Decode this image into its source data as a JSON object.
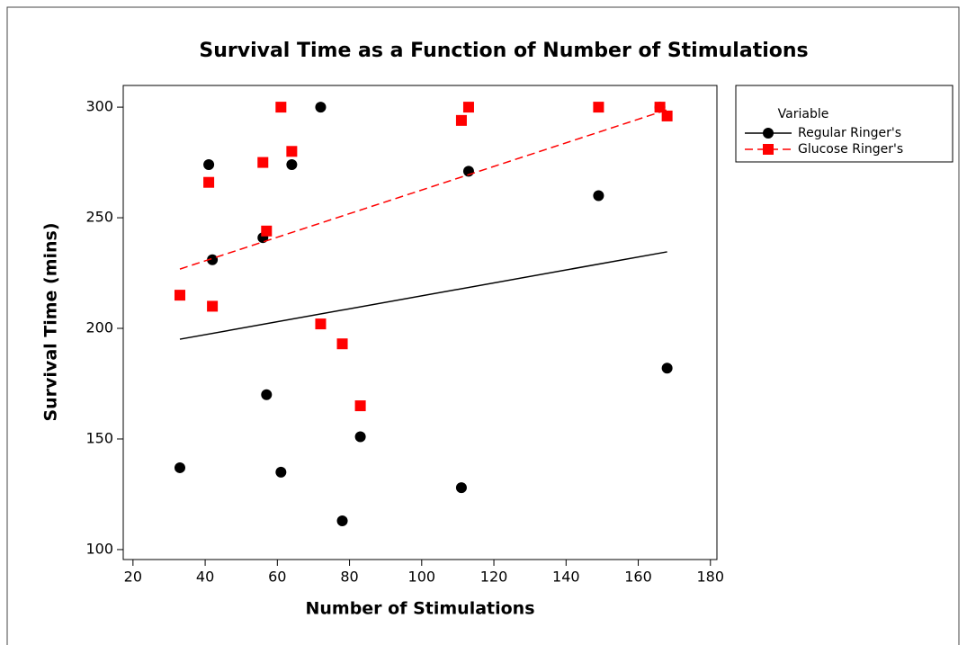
{
  "chart_data": {
    "type": "scatter",
    "title": "Survival Time as a Function of Number of Stimulations",
    "x_label": "Number of Stimulations",
    "y_label": "Survival Time (mins)",
    "legend_title": "Variable",
    "legend": "outside-right",
    "xlim": [
      17.3,
      181.8
    ],
    "ylim": [
      95.5,
      309.8
    ],
    "xticks": [
      20,
      40,
      60,
      80,
      100,
      120,
      140,
      160,
      180
    ],
    "yticks": [
      100,
      150,
      200,
      250,
      300
    ],
    "series": [
      {
        "name": "Regular Ringer's",
        "color": "#000000",
        "marker": "circle",
        "line_style": "solid",
        "x": [
          33,
          41,
          42,
          56,
          57,
          61,
          64,
          72,
          78,
          83,
          111,
          113,
          149,
          166,
          168
        ],
        "values": [
          137,
          274,
          231,
          241,
          170,
          135,
          274,
          300,
          113,
          151,
          128,
          271,
          260,
          300,
          182
        ],
        "fit_x": [
          33,
          168
        ],
        "fit_y": [
          195.1,
          234.6
        ]
      },
      {
        "name": "Glucose Ringer's",
        "color": "#ff0000",
        "marker": "square",
        "line_style": "dashed",
        "x": [
          33,
          41,
          42,
          56,
          57,
          61,
          64,
          72,
          78,
          83,
          111,
          113,
          149,
          166,
          168
        ],
        "values": [
          215,
          266,
          210,
          275,
          244,
          300,
          280,
          202,
          193,
          165,
          294,
          300,
          300,
          300,
          296
        ],
        "fit_x": [
          33,
          168
        ],
        "fit_y": [
          226.8,
          298.8
        ]
      }
    ]
  }
}
